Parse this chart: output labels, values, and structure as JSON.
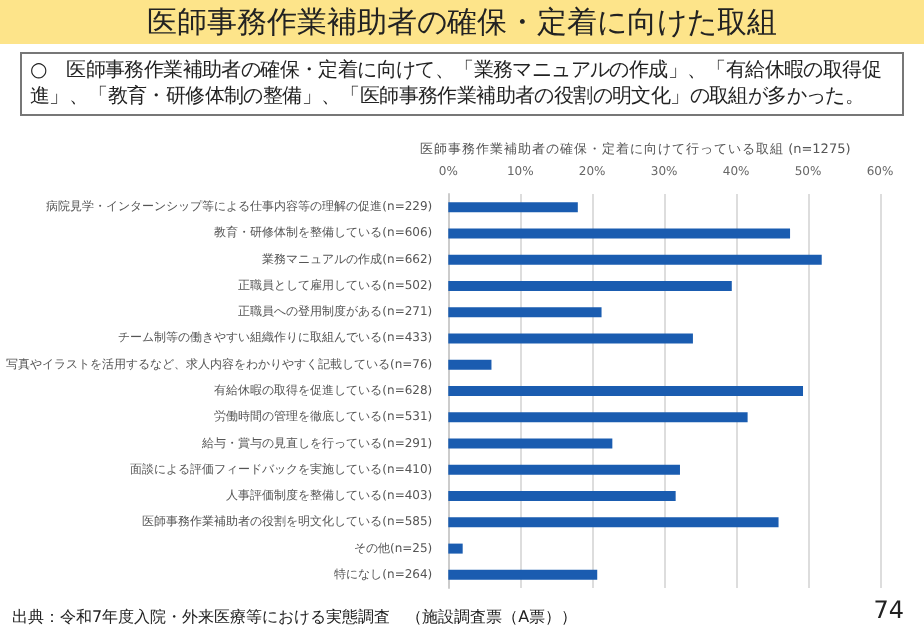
{
  "chart_data": {
    "type": "bar",
    "orientation": "horizontal",
    "title": "医師事務作業補助者の確保・定着に向けた取組",
    "subtitle": "医師事務作業補助者の確保・定着に向けて行っている取組 (n=1275)",
    "annotations": [
      "○　医師事務作業補助者の確保・定着に向けて、「業務マニュアルの作成」、「有給休暇の取得促進」、「教育・研修体制の整備」、「医師事務作業補助者の役割の明文化」の取組が多かった。",
      "出典：令和7年度入院・外来医療等における実態調査　（施設調査票（A票））",
      "74"
    ],
    "categories": [
      "病院見学・インターンシップ等による仕事内容等の理解の促進(n=229)",
      "教育・研修体制を整備している(n=606)",
      "業務マニュアルの作成(n=662)",
      "正職員として雇用している(n=502)",
      "正職員への登用制度がある(n=271)",
      "チーム制等の働きやすい組織作りに取組んでいる(n=433)",
      "写真やイラストを活用するなど、求人内容をわかりやすく記載している(n=76)",
      "有給休暇の取得を促進している(n=628)",
      "労働時間の管理を徹底している(n=531)",
      "給与・賞与の見直しを行っている(n=291)",
      "面談による評価フィードバックを実施している(n=410)",
      "人事評価制度を整備している(n=403)",
      "医師事務作業補助者の役割を明文化している(n=585)",
      "その他(n=25)",
      "特になし(n=264)"
    ],
    "values": [
      18.0,
      47.5,
      51.9,
      39.4,
      21.3,
      34.0,
      6.0,
      49.3,
      41.6,
      22.8,
      32.2,
      31.6,
      45.9,
      2.0,
      20.7
    ],
    "color": "#1a5cb0",
    "xlim": [
      0,
      60
    ],
    "xticks": [
      {
        "value": 0,
        "label": "0%"
      },
      {
        "value": 10,
        "label": "10%"
      },
      {
        "value": 20,
        "label": "20%"
      },
      {
        "value": 30,
        "label": "30%"
      },
      {
        "value": 40,
        "label": "40%"
      },
      {
        "value": 50,
        "label": "50%"
      },
      {
        "value": 60,
        "label": "60%"
      }
    ],
    "grid": "x"
  }
}
